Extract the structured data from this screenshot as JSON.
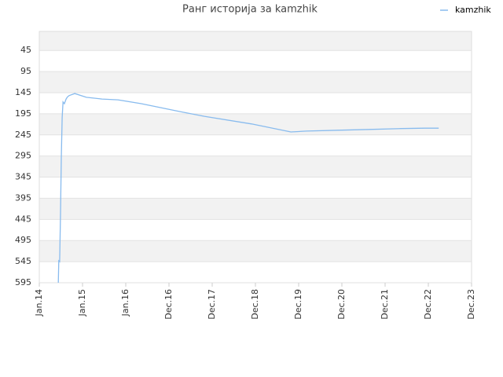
{
  "chart_data": {
    "type": "line",
    "title": "Ранг историја за kamzhik",
    "x": [
      2014.44,
      2014.45,
      2014.47,
      2014.49,
      2014.51,
      2014.53,
      2014.55,
      2014.58,
      2014.62,
      2014.65,
      2014.69,
      2014.82,
      2015.09,
      2015.45,
      2015.82,
      2016.36,
      2017.27,
      2017.82,
      2018.91,
      2019.82,
      2020.18,
      2020.91,
      2021.64,
      2022.36,
      2022.91,
      2023.24
    ],
    "series": [
      {
        "name": "kamzhik",
        "color": "#88bbee",
        "values": [
          595,
          543,
          545,
          430,
          300,
          204,
          167,
          171,
          160,
          155,
          152,
          147,
          156,
          160,
          162,
          171,
          190,
          201,
          219,
          238,
          236,
          234,
          232,
          230,
          229,
          229
        ]
      }
    ],
    "xlim": [
      2014,
      2024
    ],
    "xticks": [
      {
        "value": 2014,
        "label": "Jan.14"
      },
      {
        "value": 2015,
        "label": "Jan.15"
      },
      {
        "value": 2016,
        "label": "Jan.16"
      },
      {
        "value": 2017,
        "label": "Dec.16"
      },
      {
        "value": 2018,
        "label": "Dec.17"
      },
      {
        "value": 2019,
        "label": "Dec.18"
      },
      {
        "value": 2020,
        "label": "Dec.19"
      },
      {
        "value": 2021,
        "label": "Dec.20"
      },
      {
        "value": 2022,
        "label": "Dec.21"
      },
      {
        "value": 2023,
        "label": "Dec.22"
      },
      {
        "value": 2024,
        "label": "Dec.23"
      }
    ],
    "ylim": [
      0,
      595
    ],
    "y_inverted": true,
    "yticks": [
      45,
      95,
      145,
      195,
      245,
      295,
      345,
      395,
      445,
      495,
      545,
      595
    ],
    "grid": true,
    "legend": "top-right"
  }
}
